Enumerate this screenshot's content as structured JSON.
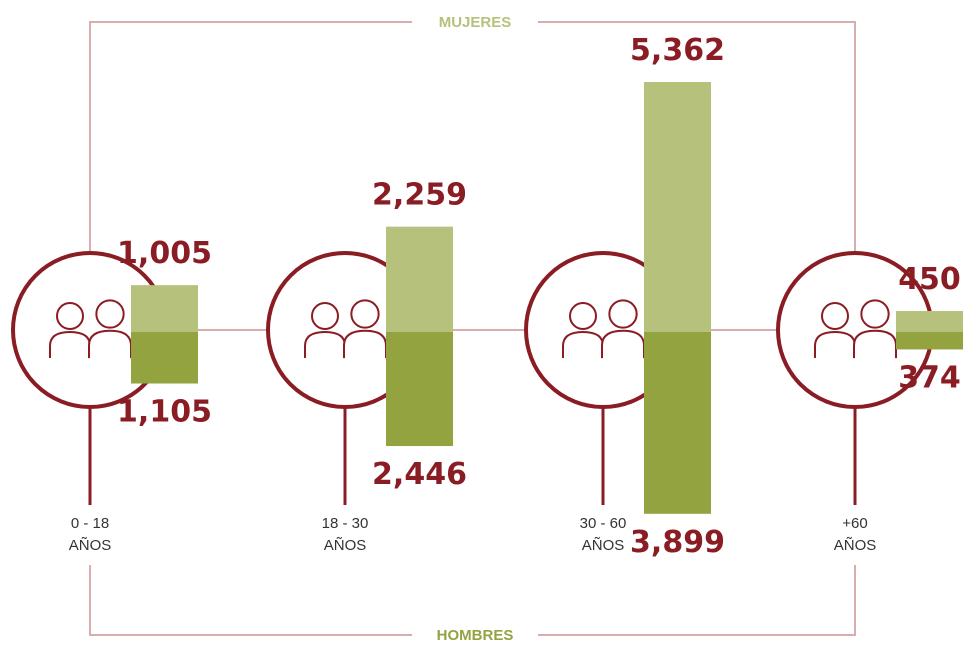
{
  "chart_data": {
    "type": "diverging-bar",
    "categories": [
      [
        "0 - 18",
        "AÑOS"
      ],
      [
        "18 - 30",
        "AÑOS"
      ],
      [
        "30 - 60",
        "AÑOS"
      ],
      [
        "+60",
        "AÑOS"
      ]
    ],
    "series": [
      {
        "name": "MUJERES",
        "color": "#b6c27c",
        "values": [
          1005,
          2259,
          5362,
          450
        ],
        "value_labels": [
          "1,005",
          "2,259",
          "5,362",
          "450"
        ]
      },
      {
        "name": "HOMBRES",
        "color": "#93a33f",
        "values": [
          1105,
          2446,
          3899,
          374
        ],
        "value_labels": [
          "1,105",
          "2,446",
          "3,899",
          "374"
        ]
      }
    ]
  }
}
